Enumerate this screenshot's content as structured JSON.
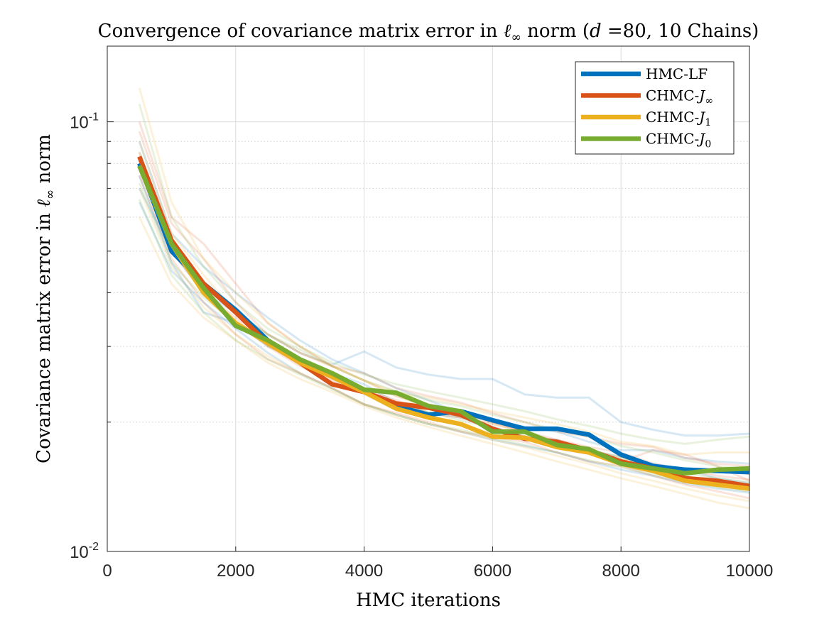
{
  "chart_data": {
    "type": "line",
    "title": {
      "prefix": "Convergence of covariance matrix error in ",
      "ell": "ℓ",
      "inf": "∞",
      "middle": " norm (",
      "d": "d",
      "suffix": " =80, 10 Chains)"
    },
    "xlabel": "HMC iterations",
    "ylabel": {
      "prefix": "Covariance matrix error in ",
      "ell": "ℓ",
      "inf": "∞",
      "suffix": " norm"
    },
    "xlim": [
      0,
      10000
    ],
    "ylim": [
      0.01,
      0.15
    ],
    "yscale": "log",
    "grid": true,
    "x_ticks": [
      0,
      2000,
      4000,
      6000,
      8000,
      10000
    ],
    "x_tick_labels": [
      "0",
      "2000",
      "4000",
      "6000",
      "8000",
      "10000"
    ],
    "y_ticks": [
      {
        "value": 0.1,
        "base": "10",
        "exp": "-1"
      },
      {
        "value": 0.01,
        "base": "10",
        "exp": "-2"
      }
    ],
    "y_minor_ticks": [
      0.02,
      0.03,
      0.04,
      0.05,
      0.06,
      0.07,
      0.08,
      0.09
    ],
    "legend_position": "top-right",
    "x": [
      500,
      1000,
      1500,
      2000,
      2500,
      3000,
      3500,
      4000,
      4500,
      5000,
      5500,
      6000,
      6500,
      7000,
      7500,
      8000,
      8500,
      9000,
      9500,
      10000
    ],
    "series": [
      {
        "name": "HMC-LF",
        "legend_base": "HMC-LF",
        "legend_sub": "",
        "color": "#0072BD",
        "values": [
          0.08,
          0.05,
          0.042,
          0.0365,
          0.031,
          0.0278,
          0.0255,
          0.0235,
          0.0218,
          0.0208,
          0.0212,
          0.0202,
          0.0193,
          0.0193,
          0.0187,
          0.0168,
          0.0158,
          0.0155,
          0.0154,
          0.0153
        ]
      },
      {
        "name": "CHMC-J∞",
        "legend_base": "CHMC-",
        "legend_italic": "J",
        "legend_sub": "∞",
        "color": "#D95319",
        "values": [
          0.083,
          0.053,
          0.042,
          0.036,
          0.0305,
          0.0275,
          0.0245,
          0.0235,
          0.0221,
          0.0216,
          0.0208,
          0.0193,
          0.0183,
          0.018,
          0.0172,
          0.0162,
          0.0156,
          0.0148,
          0.0146,
          0.0142
        ]
      },
      {
        "name": "CHMC-J1",
        "legend_base": "CHMC-",
        "legend_italic": "J",
        "legend_sub": "1",
        "color": "#EDB120",
        "values": [
          0.079,
          0.052,
          0.04,
          0.034,
          0.0305,
          0.0275,
          0.0255,
          0.0235,
          0.0215,
          0.0205,
          0.0198,
          0.0185,
          0.0184,
          0.0175,
          0.017,
          0.016,
          0.0154,
          0.0146,
          0.0143,
          0.014
        ]
      },
      {
        "name": "CHMC-J0",
        "legend_base": "CHMC-",
        "legend_italic": "J",
        "legend_sub": "0",
        "color": "#77AC30",
        "values": [
          0.079,
          0.052,
          0.041,
          0.0335,
          0.031,
          0.028,
          0.026,
          0.0238,
          0.0234,
          0.0218,
          0.0212,
          0.019,
          0.019,
          0.0177,
          0.0173,
          0.016,
          0.0156,
          0.0152,
          0.0155,
          0.0156
        ]
      }
    ],
    "background_chains": [
      {
        "color": "#0072BD",
        "values": [
          0.075,
          0.047,
          0.036,
          0.034,
          0.03,
          0.028,
          0.026,
          0.0245,
          0.0222,
          0.021,
          0.0205,
          0.0195,
          0.0185,
          0.0182,
          0.0172,
          0.0166,
          0.016,
          0.0155,
          0.0148,
          0.0144
        ]
      },
      {
        "color": "#0072BD",
        "values": [
          0.07,
          0.05,
          0.04,
          0.036,
          0.032,
          0.029,
          0.0272,
          0.0292,
          0.0268,
          0.0258,
          0.0252,
          0.0252,
          0.0232,
          0.0228,
          0.0228,
          0.02,
          0.0192,
          0.0186,
          0.0186,
          0.0188
        ]
      },
      {
        "color": "#0072BD",
        "values": [
          0.09,
          0.055,
          0.046,
          0.04,
          0.035,
          0.031,
          0.028,
          0.026,
          0.024,
          0.0225,
          0.021,
          0.02,
          0.0195,
          0.019,
          0.018,
          0.0172,
          0.0172,
          0.0165,
          0.0162,
          0.016
        ]
      },
      {
        "color": "#0072BD",
        "values": [
          0.065,
          0.045,
          0.038,
          0.033,
          0.029,
          0.026,
          0.024,
          0.022,
          0.0208,
          0.0198,
          0.019,
          0.0182,
          0.0176,
          0.017,
          0.0162,
          0.0155,
          0.015,
          0.0144,
          0.014,
          0.0137
        ]
      },
      {
        "color": "#D95319",
        "values": [
          0.1,
          0.06,
          0.052,
          0.042,
          0.034,
          0.03,
          0.027,
          0.025,
          0.023,
          0.022,
          0.021,
          0.02,
          0.019,
          0.0182,
          0.0175,
          0.017,
          0.016,
          0.0155,
          0.015,
          0.0147
        ]
      },
      {
        "color": "#D95319",
        "values": [
          0.085,
          0.05,
          0.04,
          0.035,
          0.03,
          0.027,
          0.025,
          0.0238,
          0.0225,
          0.021,
          0.0205,
          0.0198,
          0.019,
          0.018,
          0.017,
          0.0162,
          0.0172,
          0.0168,
          0.0158,
          0.0146
        ]
      },
      {
        "color": "#D95319",
        "values": [
          0.075,
          0.048,
          0.038,
          0.032,
          0.028,
          0.026,
          0.024,
          0.022,
          0.021,
          0.02,
          0.019,
          0.0185,
          0.018,
          0.017,
          0.0162,
          0.0158,
          0.015,
          0.0143,
          0.0138,
          0.0133
        ]
      },
      {
        "color": "#D95319",
        "values": [
          0.095,
          0.058,
          0.048,
          0.038,
          0.032,
          0.029,
          0.027,
          0.026,
          0.024,
          0.023,
          0.0222,
          0.021,
          0.02,
          0.019,
          0.0185,
          0.0178,
          0.0175,
          0.0165,
          0.016,
          0.0158
        ]
      },
      {
        "color": "#EDB120",
        "values": [
          0.12,
          0.065,
          0.048,
          0.04,
          0.034,
          0.03,
          0.027,
          0.025,
          0.023,
          0.0215,
          0.0205,
          0.0198,
          0.019,
          0.018,
          0.0172,
          0.0166,
          0.0158,
          0.015,
          0.0145,
          0.0142
        ]
      },
      {
        "color": "#EDB120",
        "values": [
          0.07,
          0.046,
          0.037,
          0.032,
          0.0285,
          0.026,
          0.024,
          0.022,
          0.0208,
          0.0198,
          0.019,
          0.0182,
          0.0175,
          0.0167,
          0.016,
          0.0152,
          0.0146,
          0.014,
          0.0135,
          0.0131
        ]
      },
      {
        "color": "#EDB120",
        "values": [
          0.09,
          0.055,
          0.044,
          0.036,
          0.032,
          0.029,
          0.027,
          0.025,
          0.0235,
          0.0228,
          0.022,
          0.0212,
          0.0205,
          0.0198,
          0.019,
          0.018,
          0.0176,
          0.0168,
          0.017,
          0.017
        ]
      },
      {
        "color": "#EDB120",
        "values": [
          0.06,
          0.042,
          0.035,
          0.031,
          0.0275,
          0.0252,
          0.0235,
          0.0218,
          0.0205,
          0.0195,
          0.0186,
          0.0178,
          0.017,
          0.0162,
          0.0155,
          0.0148,
          0.0142,
          0.0136,
          0.013,
          0.0126
        ]
      },
      {
        "color": "#77AC30",
        "values": [
          0.11,
          0.06,
          0.046,
          0.038,
          0.033,
          0.03,
          0.0275,
          0.0258,
          0.0245,
          0.0236,
          0.0228,
          0.022,
          0.0212,
          0.0203,
          0.0196,
          0.0188,
          0.0182,
          0.0178,
          0.0182,
          0.0185
        ]
      },
      {
        "color": "#77AC30",
        "values": [
          0.072,
          0.047,
          0.039,
          0.034,
          0.0305,
          0.0278,
          0.0256,
          0.0238,
          0.0222,
          0.0211,
          0.0202,
          0.0194,
          0.0186,
          0.0178,
          0.0172,
          0.0165,
          0.0159,
          0.0152,
          0.0148,
          0.0145
        ]
      },
      {
        "color": "#77AC30",
        "values": [
          0.085,
          0.052,
          0.042,
          0.036,
          0.032,
          0.0295,
          0.027,
          0.025,
          0.0236,
          0.0225,
          0.0218,
          0.0208,
          0.02,
          0.0192,
          0.0185,
          0.0176,
          0.017,
          0.0163,
          0.0158,
          0.0155
        ]
      },
      {
        "color": "#77AC30",
        "values": [
          0.066,
          0.044,
          0.036,
          0.031,
          0.028,
          0.0258,
          0.0238,
          0.022,
          0.0208,
          0.0198,
          0.0192,
          0.0184,
          0.0177,
          0.017,
          0.0163,
          0.0157,
          0.0151,
          0.0145,
          0.0141,
          0.0138
        ]
      }
    ]
  }
}
